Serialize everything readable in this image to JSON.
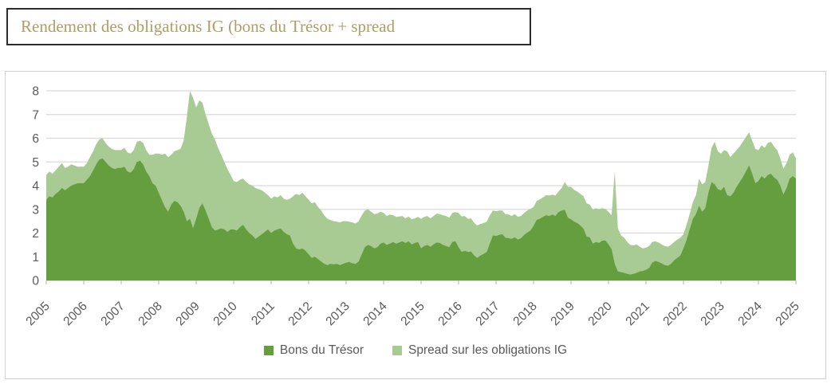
{
  "title": {
    "text": "Rendement des obligations IG (bons du Trésor + spread"
  },
  "colors": {
    "title": "#ae9d66",
    "grid": "#d9d9d9",
    "axis": "#bfbfbf",
    "tick_label": "#595959",
    "series_dark": "#659e3f",
    "series_light": "#a8ca93"
  },
  "chart_data": {
    "type": "area",
    "stacked": true,
    "title": "Rendement des obligations IG (bons du Trésor + spread",
    "xlabel": "",
    "ylabel": "",
    "ylim": [
      0,
      8
    ],
    "y_ticks": [
      0,
      1,
      2,
      3,
      4,
      5,
      6,
      7,
      8
    ],
    "grid": true,
    "legend_position": "bottom",
    "x_start_year": 2005,
    "points_per_year": 12,
    "x_tick_labels": [
      "2005",
      "2006",
      "2007",
      "2008",
      "2009",
      "2010",
      "2011",
      "2012",
      "2013",
      "2014",
      "2015",
      "2016",
      "2017",
      "2018",
      "2019",
      "2020",
      "2021",
      "2022",
      "2023",
      "2024",
      "2025"
    ],
    "series": [
      {
        "name": "Bons du Trésor",
        "color": "#659e3f",
        "values": [
          3.4,
          3.55,
          3.5,
          3.65,
          3.75,
          3.9,
          3.8,
          3.9,
          4.0,
          4.05,
          4.1,
          4.1,
          4.1,
          4.25,
          4.4,
          4.65,
          4.9,
          5.1,
          5.15,
          5.0,
          4.85,
          4.75,
          4.7,
          4.75,
          4.75,
          4.8,
          4.6,
          4.55,
          4.7,
          5.0,
          5.05,
          4.9,
          4.6,
          4.4,
          4.1,
          4.0,
          3.7,
          3.4,
          3.1,
          2.9,
          3.2,
          3.35,
          3.3,
          3.15,
          2.9,
          2.5,
          2.6,
          2.2,
          2.6,
          3.05,
          3.25,
          2.95,
          2.6,
          2.25,
          2.1,
          2.15,
          2.2,
          2.15,
          2.05,
          2.15,
          2.15,
          2.1,
          2.25,
          2.35,
          2.15,
          2.0,
          1.9,
          1.75,
          1.85,
          1.95,
          2.05,
          2.15,
          2.0,
          2.1,
          2.15,
          2.2,
          2.05,
          1.95,
          1.9,
          1.55,
          1.35,
          1.3,
          1.35,
          1.25,
          1.1,
          0.95,
          1.0,
          0.9,
          0.8,
          0.7,
          0.65,
          0.7,
          0.68,
          0.7,
          0.65,
          0.7,
          0.75,
          0.78,
          0.72,
          0.7,
          0.8,
          1.1,
          1.4,
          1.5,
          1.45,
          1.35,
          1.4,
          1.55,
          1.6,
          1.5,
          1.55,
          1.62,
          1.55,
          1.6,
          1.65,
          1.58,
          1.65,
          1.52,
          1.58,
          1.62,
          1.35,
          1.45,
          1.5,
          1.42,
          1.52,
          1.6,
          1.58,
          1.5,
          1.45,
          1.4,
          1.62,
          1.65,
          1.4,
          1.2,
          1.25,
          1.2,
          1.22,
          1.05,
          0.95,
          1.05,
          1.12,
          1.2,
          1.55,
          1.9,
          1.88,
          1.92,
          1.95,
          1.8,
          1.78,
          1.75,
          1.82,
          1.72,
          1.78,
          1.92,
          2.02,
          2.1,
          2.3,
          2.55,
          2.6,
          2.68,
          2.75,
          2.72,
          2.78,
          2.72,
          2.88,
          2.95,
          2.98,
          2.65,
          2.58,
          2.48,
          2.42,
          2.32,
          2.18,
          1.85,
          1.82,
          1.55,
          1.62,
          1.58,
          1.68,
          1.68,
          1.52,
          1.32,
          0.7,
          0.38,
          0.35,
          0.32,
          0.28,
          0.25,
          0.28,
          0.32,
          0.38,
          0.4,
          0.45,
          0.52,
          0.75,
          0.82,
          0.78,
          0.72,
          0.65,
          0.62,
          0.7,
          0.85,
          0.95,
          1.05,
          1.35,
          1.7,
          2.15,
          2.6,
          2.8,
          3.15,
          2.9,
          3.05,
          3.7,
          4.15,
          4.05,
          3.85,
          3.8,
          3.95,
          3.6,
          3.55,
          3.7,
          3.95,
          4.15,
          4.35,
          4.6,
          4.85,
          4.5,
          4.1,
          4.2,
          4.4,
          4.3,
          4.45,
          4.5,
          4.35,
          4.25,
          4.0,
          3.62,
          3.9,
          4.3,
          4.4,
          4.3
        ]
      },
      {
        "name": "Spread sur les obligations IG",
        "color": "#a8ca93",
        "values": [
          1.05,
          1.05,
          1.0,
          1.0,
          1.05,
          1.05,
          0.95,
          0.9,
          0.9,
          0.8,
          0.7,
          0.7,
          0.7,
          0.7,
          0.8,
          0.8,
          0.85,
          0.85,
          0.85,
          0.8,
          0.8,
          0.8,
          0.8,
          0.75,
          0.75,
          0.8,
          0.8,
          0.8,
          0.8,
          0.85,
          0.85,
          0.9,
          0.9,
          0.9,
          1.2,
          1.35,
          1.65,
          1.9,
          2.25,
          2.3,
          2.1,
          2.1,
          2.2,
          2.4,
          3.0,
          4.4,
          5.4,
          5.5,
          4.7,
          4.55,
          4.25,
          4.05,
          4.0,
          3.95,
          3.85,
          3.45,
          3.1,
          2.85,
          2.65,
          2.3,
          2.05,
          2.05,
          2.0,
          1.95,
          2.0,
          2.05,
          2.1,
          2.15,
          2.0,
          1.85,
          1.65,
          1.45,
          1.45,
          1.45,
          1.35,
          1.4,
          1.4,
          1.45,
          1.55,
          2.0,
          2.3,
          2.3,
          2.35,
          2.3,
          2.3,
          2.3,
          2.3,
          2.2,
          2.15,
          2.05,
          1.95,
          1.85,
          1.82,
          1.78,
          1.8,
          1.8,
          1.75,
          1.7,
          1.73,
          1.7,
          1.7,
          1.65,
          1.55,
          1.5,
          1.45,
          1.45,
          1.42,
          1.35,
          1.25,
          1.22,
          1.23,
          1.13,
          1.13,
          1.1,
          1.07,
          1.04,
          1.05,
          1.06,
          1.04,
          1.06,
          1.25,
          1.23,
          1.22,
          1.2,
          1.2,
          1.22,
          1.22,
          1.25,
          1.27,
          1.25,
          1.23,
          1.23,
          1.45,
          1.5,
          1.47,
          1.4,
          1.4,
          1.37,
          1.37,
          1.33,
          1.3,
          1.28,
          1.2,
          1.05,
          1.04,
          1.03,
          1.0,
          1.0,
          1.0,
          0.97,
          0.98,
          0.96,
          0.94,
          0.93,
          0.93,
          0.92,
          0.8,
          0.8,
          0.82,
          0.82,
          0.85,
          0.86,
          0.84,
          0.86,
          0.87,
          0.95,
          1.17,
          1.3,
          1.37,
          1.34,
          1.33,
          1.33,
          1.37,
          1.4,
          1.38,
          1.43,
          1.43,
          1.42,
          1.37,
          1.34,
          1.38,
          1.43,
          3.9,
          1.82,
          1.55,
          1.48,
          1.34,
          1.25,
          1.2,
          1.2,
          1.04,
          0.95,
          0.93,
          0.93,
          0.87,
          0.83,
          0.82,
          0.8,
          0.8,
          0.8,
          0.8,
          0.77,
          0.77,
          0.75,
          0.6,
          0.65,
          0.65,
          0.7,
          0.8,
          1.15,
          1.15,
          1.1,
          1.15,
          1.45,
          1.8,
          1.6,
          1.55,
          1.55,
          1.85,
          1.65,
          1.65,
          1.55,
          1.5,
          1.5,
          1.45,
          1.4,
          1.4,
          1.45,
          1.3,
          1.3,
          1.3,
          1.35,
          1.35,
          1.3,
          1.25,
          1.15,
          1.1,
          1.05,
          1.0,
          1.0,
          0.85
        ]
      }
    ]
  }
}
